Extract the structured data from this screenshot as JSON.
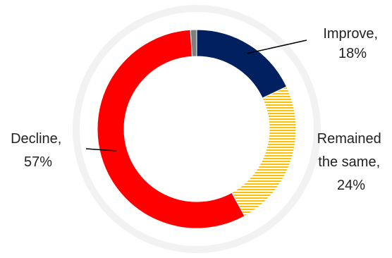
{
  "chart_data": {
    "type": "pie",
    "variant": "donut",
    "title": "",
    "slices": [
      {
        "label": "Improve",
        "value": 18,
        "value_label": "18%",
        "color": "#002060",
        "pattern": "solid"
      },
      {
        "label": "Remained the same",
        "value": 24,
        "value_label": "24%",
        "color": "#FFC000",
        "pattern": "horizontal-stripes"
      },
      {
        "label": "Decline",
        "value": 57,
        "value_label": "57%",
        "color": "#FF0000",
        "pattern": "solid"
      },
      {
        "label": "",
        "value": 1,
        "value_label": "",
        "color": "#7F7F7F",
        "pattern": "solid"
      }
    ],
    "data_labels": [
      {
        "lines": [
          "Improve,",
          "18%"
        ]
      },
      {
        "lines": [
          "Remained",
          "the same,",
          "24%"
        ]
      },
      {
        "lines": [
          "Decline,",
          "57%"
        ]
      }
    ],
    "legend": "none",
    "background_ring_color": "#F2F2F2"
  }
}
